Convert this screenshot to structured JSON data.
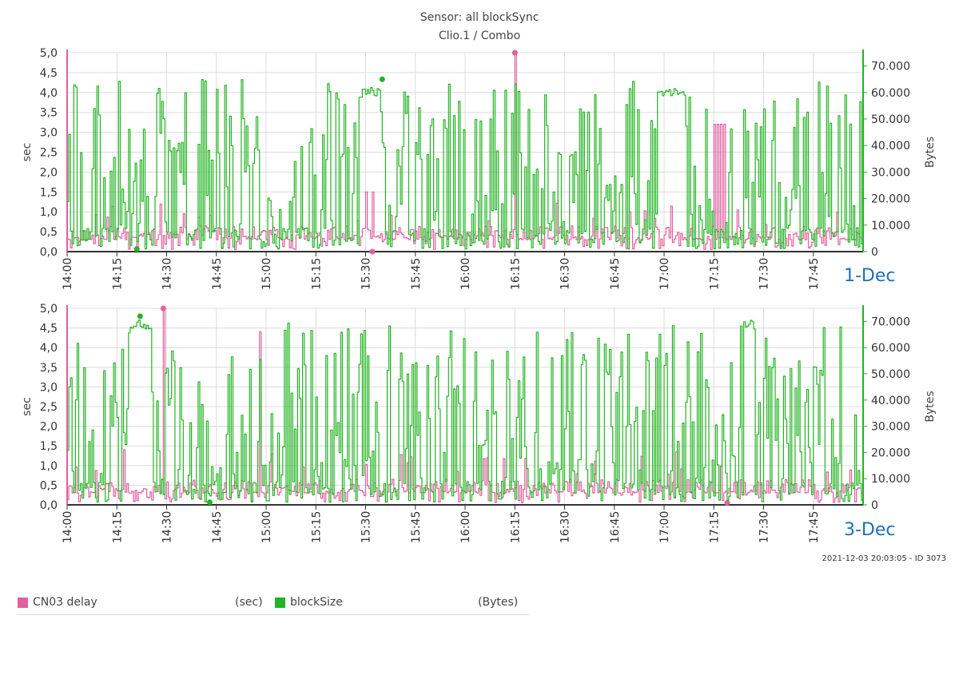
{
  "header": {
    "title": "Sensor: all blockSync",
    "subtitle": "Clio.1 / Combo"
  },
  "colors": {
    "delay": "#e0609f",
    "blocksize": "#22b422",
    "grid": "#dcdcdc",
    "axis": "#333333",
    "left_axis_line": "#e0609f",
    "right_axis_line": "#22b422"
  },
  "panels": [
    {
      "day_label": "1-Dec"
    },
    {
      "day_label": "3-Dec"
    }
  ],
  "footer": {
    "timestamp": "2021-12-03 20:03:05 - ID 3073"
  },
  "legend": {
    "items": [
      {
        "name": "CN03 delay",
        "unit": "(sec)"
      },
      {
        "name": "blockSize",
        "unit": "(Bytes)"
      }
    ]
  },
  "chart_data": [
    {
      "type": "line",
      "panel": "1-Dec",
      "x_ticks": [
        "14:00",
        "14:15",
        "14:30",
        "14:45",
        "15:00",
        "15:15",
        "15:30",
        "15:45",
        "16:00",
        "16:15",
        "16:30",
        "16:45",
        "17:00",
        "17:15",
        "17:30",
        "17:45"
      ],
      "xlim": [
        "14:00",
        "18:00"
      ],
      "ylabel_left": "sec",
      "ylabel_right": "Bytes",
      "ylim_left": [
        0,
        5
      ],
      "ylim_right": [
        0,
        75000
      ],
      "yticks_left": [
        "0,0",
        "0,5",
        "1,0",
        "1,5",
        "2,0",
        "2,5",
        "3,0",
        "3,5",
        "4,0",
        "4,5",
        "5,0"
      ],
      "yticks_right": [
        "0",
        "10.000",
        "20.000",
        "30.000",
        "40.000",
        "50.000",
        "60.000",
        "70.000"
      ],
      "grid": true,
      "series": [
        {
          "name": "CN03 delay",
          "axis": "left",
          "generator_seed": 11,
          "base": 0.3,
          "noise": 0.35,
          "spikes": [
            [
              "15:30",
              1.5
            ],
            [
              "15:32",
              1.5
            ],
            [
              "16:15",
              5.0
            ],
            [
              "17:15",
              3.2
            ],
            [
              "17:16",
              3.2
            ],
            [
              "17:17",
              3.2
            ],
            [
              "17:18",
              3.2
            ]
          ],
          "marker_max": [
            "16:15",
            5.0
          ],
          "marker_min": [
            "15:32",
            0.0
          ]
        },
        {
          "name": "blockSize",
          "axis": "right",
          "generator_seed": 29,
          "base": 8000,
          "noise": 58000,
          "plateaus": [
            [
              "15:28",
              "15:34",
              62000
            ],
            [
              "16:58",
              "17:06",
              62000
            ]
          ],
          "marker_max": [
            "15:35",
            65000
          ],
          "marker_min": [
            "14:21",
            1000
          ]
        }
      ]
    },
    {
      "type": "line",
      "panel": "3-Dec",
      "x_ticks": [
        "14:00",
        "14:15",
        "14:30",
        "14:45",
        "15:00",
        "15:15",
        "15:30",
        "15:45",
        "16:00",
        "16:15",
        "16:30",
        "16:45",
        "17:00",
        "17:15",
        "17:30",
        "17:45"
      ],
      "xlim": [
        "14:00",
        "18:00"
      ],
      "ylabel_left": "sec",
      "ylabel_right": "Bytes",
      "ylim_left": [
        0,
        5
      ],
      "ylim_right": [
        0,
        75000
      ],
      "yticks_left": [
        "0,0",
        "0,5",
        "1,0",
        "1,5",
        "2,0",
        "2,5",
        "3,0",
        "3,5",
        "4,0",
        "4,5",
        "5,0"
      ],
      "yticks_right": [
        "0",
        "10.000",
        "20.000",
        "30.000",
        "40.000",
        "50.000",
        "60.000",
        "70.000"
      ],
      "grid": true,
      "series": [
        {
          "name": "CN03 delay",
          "axis": "left",
          "generator_seed": 47,
          "base": 0.3,
          "noise": 0.35,
          "spikes": [
            [
              "14:29",
              5.0
            ],
            [
              "14:58",
              4.4
            ],
            [
              "14:17",
              1.4
            ]
          ],
          "marker_max": [
            "14:29",
            5.0
          ],
          "marker_min": [
            "17:19",
            0.05
          ]
        },
        {
          "name": "blockSize",
          "axis": "right",
          "generator_seed": 83,
          "base": 8000,
          "noise": 62000,
          "plateaus": [
            [
              "14:19",
              "14:25",
              71000
            ],
            [
              "17:24",
              "17:27",
              71000
            ]
          ],
          "marker_max": [
            "14:22",
            72000
          ],
          "marker_min": [
            "14:43",
            1000
          ]
        }
      ]
    }
  ]
}
